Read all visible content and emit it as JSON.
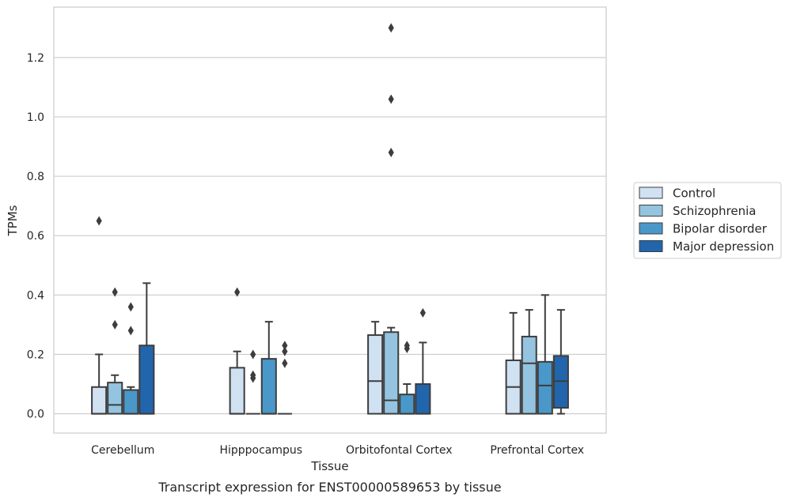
{
  "caption": "Transcript expression for ENST00000589653 by tissue",
  "chart_data": {
    "type": "box",
    "xlabel": "Tissue",
    "ylabel": "TPMs",
    "ylim": [
      -0.065,
      1.37
    ],
    "yticks": [
      0.0,
      0.2,
      0.4,
      0.6,
      0.8,
      1.0,
      1.2
    ],
    "ytick_labels": [
      "0.0",
      "0.2",
      "0.4",
      "0.6",
      "0.8",
      "1.0",
      "1.2"
    ],
    "grid": "horizontal",
    "legend_position": "right-outside",
    "categories": [
      "Cerebellum",
      "Hipppocampus",
      "Orbitofontal Cortex",
      "Prefrontal Cortex"
    ],
    "series": [
      {
        "name": "Control",
        "color": "#d0e1f2",
        "boxes": [
          {
            "q1": 0.0,
            "median": 0.0,
            "q3": 0.09,
            "whisker_low": 0.0,
            "whisker_high": 0.2,
            "outliers": [
              0.65
            ]
          },
          {
            "q1": 0.0,
            "median": 0.0,
            "q3": 0.155,
            "whisker_low": 0.0,
            "whisker_high": 0.21,
            "outliers": [
              0.41
            ]
          },
          {
            "q1": 0.0,
            "median": 0.11,
            "q3": 0.265,
            "whisker_low": 0.0,
            "whisker_high": 0.31,
            "outliers": []
          },
          {
            "q1": 0.0,
            "median": 0.09,
            "q3": 0.18,
            "whisker_low": 0.0,
            "whisker_high": 0.34,
            "outliers": []
          }
        ]
      },
      {
        "name": "Schizophrenia",
        "color": "#94c4df",
        "boxes": [
          {
            "q1": 0.0,
            "median": 0.03,
            "q3": 0.105,
            "whisker_low": 0.0,
            "whisker_high": 0.13,
            "outliers": [
              0.3,
              0.41
            ]
          },
          {
            "q1": 0.0,
            "median": 0.0,
            "q3": 0.0,
            "whisker_low": 0.0,
            "whisker_high": 0.0,
            "outliers": [
              0.12,
              0.13,
              0.2
            ]
          },
          {
            "q1": 0.0,
            "median": 0.045,
            "q3": 0.275,
            "whisker_low": 0.0,
            "whisker_high": 0.29,
            "outliers": [
              0.88,
              1.06,
              1.3
            ]
          },
          {
            "q1": 0.0,
            "median": 0.17,
            "q3": 0.26,
            "whisker_low": 0.0,
            "whisker_high": 0.35,
            "outliers": []
          }
        ]
      },
      {
        "name": "Bipolar disorder",
        "color": "#4a98c9",
        "boxes": [
          {
            "q1": 0.0,
            "median": 0.0,
            "q3": 0.08,
            "whisker_low": 0.0,
            "whisker_high": 0.09,
            "outliers": [
              0.28,
              0.36
            ]
          },
          {
            "q1": 0.0,
            "median": 0.0,
            "q3": 0.185,
            "whisker_low": 0.0,
            "whisker_high": 0.31,
            "outliers": []
          },
          {
            "q1": 0.0,
            "median": 0.0,
            "q3": 0.065,
            "whisker_low": 0.0,
            "whisker_high": 0.1,
            "outliers": [
              0.22,
              0.23
            ]
          },
          {
            "q1": 0.0,
            "median": 0.095,
            "q3": 0.175,
            "whisker_low": 0.0,
            "whisker_high": 0.4,
            "outliers": []
          }
        ]
      },
      {
        "name": "Major depression",
        "color": "#2166ac",
        "boxes": [
          {
            "q1": 0.0,
            "median": 0.0,
            "q3": 0.23,
            "whisker_low": 0.0,
            "whisker_high": 0.44,
            "outliers": []
          },
          {
            "q1": 0.0,
            "median": 0.0,
            "q3": 0.0,
            "whisker_low": 0.0,
            "whisker_high": 0.0,
            "outliers": [
              0.17,
              0.21,
              0.23
            ]
          },
          {
            "q1": 0.0,
            "median": 0.0,
            "q3": 0.1,
            "whisker_low": 0.0,
            "whisker_high": 0.24,
            "outliers": [
              0.34
            ]
          },
          {
            "q1": 0.02,
            "median": 0.11,
            "q3": 0.195,
            "whisker_low": 0.0,
            "whisker_high": 0.35,
            "outliers": []
          }
        ]
      }
    ]
  }
}
